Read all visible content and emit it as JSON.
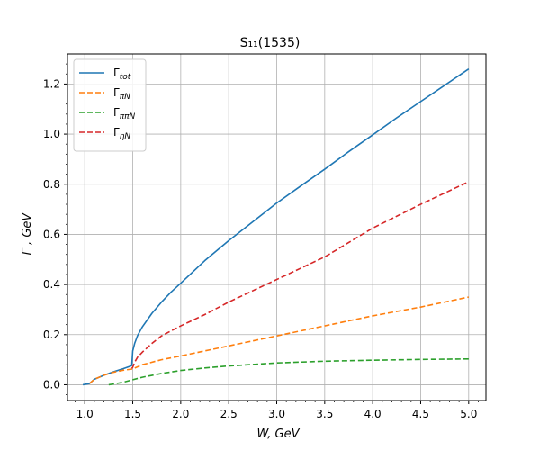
{
  "chart_data": {
    "type": "line",
    "title": "S₁₁(1535)",
    "xlabel": "W, GeV",
    "ylabel": "Γ , GeV",
    "xlim": [
      0.82,
      5.18
    ],
    "ylim": [
      -0.063,
      1.32
    ],
    "x_ticks": [
      1.0,
      1.5,
      2.0,
      2.5,
      3.0,
      3.5,
      4.0,
      4.5,
      5.0
    ],
    "x_tick_labels": [
      "1.0",
      "1.5",
      "2.0",
      "2.5",
      "3.0",
      "3.5",
      "4.0",
      "4.5",
      "5.0"
    ],
    "y_ticks": [
      0.0,
      0.2,
      0.4,
      0.6,
      0.8,
      1.0,
      1.2
    ],
    "y_tick_labels": [
      "0.0",
      "0.2",
      "0.4",
      "0.6",
      "0.8",
      "1.0",
      "1.2"
    ],
    "grid": true,
    "legend_position": "top-left",
    "series": [
      {
        "name": "Γtot",
        "legend_main": "Γ",
        "legend_sub": "tot",
        "color": "#1f77b4",
        "dash": "solid",
        "x": [
          0.98,
          1.05,
          1.1,
          1.2,
          1.3,
          1.4,
          1.48,
          1.49,
          1.5,
          1.52,
          1.55,
          1.6,
          1.7,
          1.8,
          1.9,
          2.0,
          2.25,
          2.5,
          2.75,
          3.0,
          3.25,
          3.5,
          3.75,
          4.0,
          4.25,
          4.5,
          4.75,
          5.0
        ],
        "y": [
          0.0,
          0.005,
          0.022,
          0.038,
          0.052,
          0.064,
          0.075,
          0.077,
          0.135,
          0.165,
          0.196,
          0.231,
          0.285,
          0.33,
          0.37,
          0.405,
          0.495,
          0.575,
          0.65,
          0.725,
          0.793,
          0.86,
          0.93,
          0.997,
          1.065,
          1.13,
          1.195,
          1.26
        ]
      },
      {
        "name": "ΓπN",
        "legend_main": "Γ",
        "legend_sub": "πN",
        "color": "#ff7f0e",
        "dash": "dashed",
        "x": [
          1.05,
          1.1,
          1.2,
          1.3,
          1.4,
          1.5,
          1.6,
          1.8,
          2.0,
          2.5,
          3.0,
          3.5,
          4.0,
          4.5,
          5.0
        ],
        "y": [
          0.005,
          0.022,
          0.038,
          0.05,
          0.058,
          0.063,
          0.08,
          0.1,
          0.115,
          0.155,
          0.195,
          0.235,
          0.275,
          0.31,
          0.35
        ]
      },
      {
        "name": "ΓππN",
        "legend_main": "Γ",
        "legend_sub": "ππN",
        "color": "#2ca02c",
        "dash": "dashed",
        "x": [
          1.25,
          1.3,
          1.4,
          1.5,
          1.6,
          1.8,
          2.0,
          2.25,
          2.5,
          3.0,
          3.5,
          4.0,
          4.5,
          5.0
        ],
        "y": [
          0.0,
          0.003,
          0.01,
          0.02,
          0.03,
          0.045,
          0.057,
          0.067,
          0.075,
          0.087,
          0.094,
          0.098,
          0.101,
          0.103
        ]
      },
      {
        "name": "ΓηN",
        "legend_main": "Γ",
        "legend_sub": "ηN",
        "color": "#d62728",
        "dash": "dashed",
        "x": [
          1.49,
          1.5,
          1.52,
          1.55,
          1.6,
          1.7,
          1.8,
          2.0,
          2.25,
          2.5,
          3.0,
          3.5,
          4.0,
          4.5,
          5.0
        ],
        "y": [
          0.065,
          0.07,
          0.09,
          0.11,
          0.13,
          0.165,
          0.195,
          0.235,
          0.28,
          0.33,
          0.42,
          0.51,
          0.625,
          0.72,
          0.81
        ]
      }
    ]
  }
}
